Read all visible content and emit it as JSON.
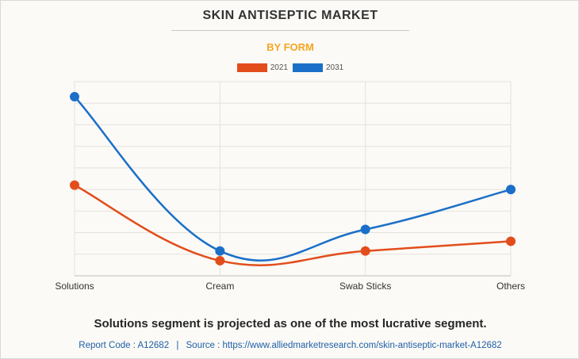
{
  "header": {
    "title": "SKIN ANTISEPTIC MARKET",
    "subtitle": "BY FORM"
  },
  "colors": {
    "subtitle": "#f5a623",
    "series_2021": "#e24d1b",
    "series_2031": "#1b6fc8"
  },
  "chart_data": {
    "type": "line",
    "title": "SKIN ANTISEPTIC MARKET",
    "subtitle": "BY FORM",
    "categories": [
      "Solutions",
      "Cream",
      "Swab Sticks",
      "Others"
    ],
    "series": [
      {
        "name": "2021",
        "values": [
          42,
          7,
          11.5,
          16
        ],
        "color": "#e24d1b"
      },
      {
        "name": "2031",
        "values": [
          83,
          11.5,
          21.5,
          40
        ],
        "color": "#1b6fc8"
      }
    ],
    "ylim": [
      0,
      90
    ],
    "xlabel": "",
    "ylabel": "",
    "grid": true,
    "legend": "top-center",
    "smooth": true
  },
  "footer": {
    "headline": "Solutions segment is projected as one of the most lucrative segment.",
    "report_code_label": "Report Code : A12682",
    "separator": "|",
    "source_label": "Source : https://www.alliedmarketresearch.com/skin-antiseptic-market-A12682"
  }
}
